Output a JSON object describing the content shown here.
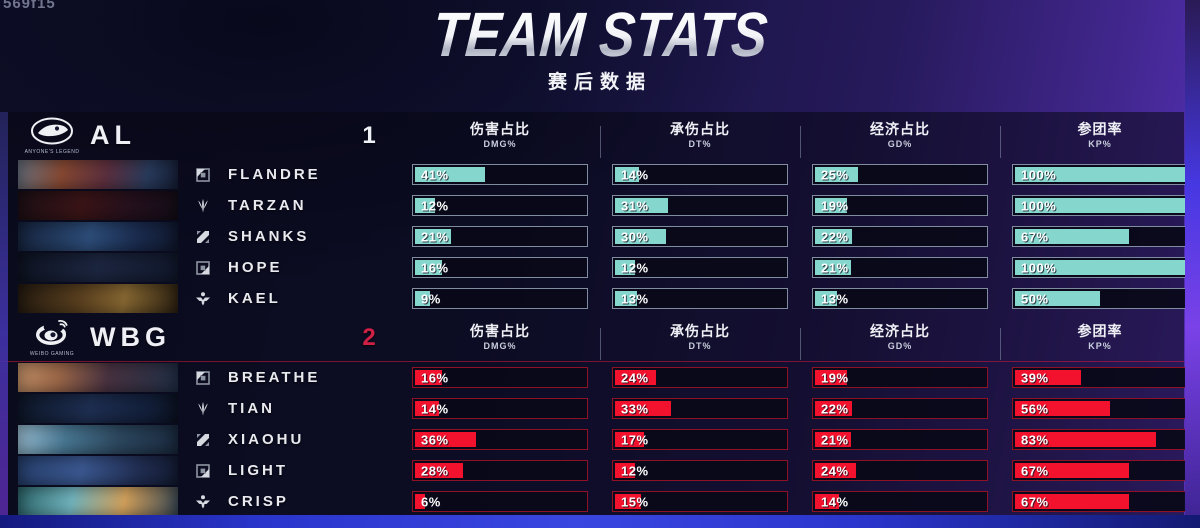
{
  "watermark": "569f15",
  "title": "TEAM STATS",
  "subtitle": "赛后数据",
  "columns": [
    {
      "zh": "伤害占比",
      "en": "DMG%"
    },
    {
      "zh": "承伤占比",
      "en": "DT%"
    },
    {
      "zh": "经济占比",
      "en": "GD%"
    },
    {
      "zh": "参团率",
      "en": "KP%"
    }
  ],
  "teams": [
    {
      "name": "AL",
      "caption": "ANYONE'S LEGEND",
      "score": "1",
      "colors": {
        "bar_fill": "#85d6cd",
        "bar_border": "#808da0",
        "score": "#eef1f6"
      },
      "players": [
        {
          "name": "FLANDRE",
          "role": "top",
          "dmg": {
            "value": 41,
            "label": "41%"
          },
          "dt": {
            "value": 14,
            "label": "14%"
          },
          "gd": {
            "value": 25,
            "label": "25%"
          },
          "kp": {
            "value": 100,
            "label": "100%"
          }
        },
        {
          "name": "TARZAN",
          "role": "jungle",
          "dmg": {
            "value": 12,
            "label": "12%"
          },
          "dt": {
            "value": 31,
            "label": "31%"
          },
          "gd": {
            "value": 19,
            "label": "19%"
          },
          "kp": {
            "value": 100,
            "label": "100%"
          }
        },
        {
          "name": "SHANKS",
          "role": "mid",
          "dmg": {
            "value": 21,
            "label": "21%"
          },
          "dt": {
            "value": 30,
            "label": "30%"
          },
          "gd": {
            "value": 22,
            "label": "22%"
          },
          "kp": {
            "value": 67,
            "label": "67%"
          }
        },
        {
          "name": "HOPE",
          "role": "bot",
          "dmg": {
            "value": 16,
            "label": "16%"
          },
          "dt": {
            "value": 12,
            "label": "12%"
          },
          "gd": {
            "value": 21,
            "label": "21%"
          },
          "kp": {
            "value": 100,
            "label": "100%"
          }
        },
        {
          "name": "KAEL",
          "role": "support",
          "dmg": {
            "value": 9,
            "label": "9%"
          },
          "dt": {
            "value": 13,
            "label": "13%"
          },
          "gd": {
            "value": 13,
            "label": "13%"
          },
          "kp": {
            "value": 50,
            "label": "50%"
          }
        }
      ]
    },
    {
      "name": "WBG",
      "caption": "WEIBO GAMING",
      "score": "2",
      "colors": {
        "bar_fill": "#f2122e",
        "bar_border": "#8e1126",
        "score": "#cf2145"
      },
      "players": [
        {
          "name": "BREATHE",
          "role": "top",
          "dmg": {
            "value": 16,
            "label": "16%"
          },
          "dt": {
            "value": 24,
            "label": "24%"
          },
          "gd": {
            "value": 19,
            "label": "19%"
          },
          "kp": {
            "value": 39,
            "label": "39%"
          }
        },
        {
          "name": "TIAN",
          "role": "jungle",
          "dmg": {
            "value": 14,
            "label": "14%"
          },
          "dt": {
            "value": 33,
            "label": "33%"
          },
          "gd": {
            "value": 22,
            "label": "22%"
          },
          "kp": {
            "value": 56,
            "label": "56%"
          }
        },
        {
          "name": "XIAOHU",
          "role": "mid",
          "dmg": {
            "value": 36,
            "label": "36%"
          },
          "dt": {
            "value": 17,
            "label": "17%"
          },
          "gd": {
            "value": 21,
            "label": "21%"
          },
          "kp": {
            "value": 83,
            "label": "83%"
          }
        },
        {
          "name": "LIGHT",
          "role": "bot",
          "dmg": {
            "value": 28,
            "label": "28%"
          },
          "dt": {
            "value": 12,
            "label": "12%"
          },
          "gd": {
            "value": 24,
            "label": "24%"
          },
          "kp": {
            "value": 67,
            "label": "67%"
          }
        },
        {
          "name": "CRISP",
          "role": "support",
          "dmg": {
            "value": 6,
            "label": "6%"
          },
          "dt": {
            "value": 15,
            "label": "15%"
          },
          "gd": {
            "value": 14,
            "label": "14%"
          },
          "kp": {
            "value": 67,
            "label": "67%"
          }
        }
      ]
    }
  ],
  "chart_data": {
    "type": "bar",
    "title": "TEAM STATS 赛后数据",
    "categories": [
      "DMG%",
      "DT%",
      "GD%",
      "KP%"
    ],
    "value_range": [
      0,
      100
    ],
    "series": [
      {
        "name": "AL FLANDRE",
        "values": [
          41,
          14,
          25,
          100
        ]
      },
      {
        "name": "AL TARZAN",
        "values": [
          12,
          31,
          19,
          100
        ]
      },
      {
        "name": "AL SHANKS",
        "values": [
          21,
          30,
          22,
          67
        ]
      },
      {
        "name": "AL HOPE",
        "values": [
          16,
          12,
          21,
          100
        ]
      },
      {
        "name": "AL KAEL",
        "values": [
          9,
          13,
          13,
          50
        ]
      },
      {
        "name": "WBG BREATHE",
        "values": [
          16,
          24,
          19,
          39
        ]
      },
      {
        "name": "WBG TIAN",
        "values": [
          14,
          33,
          22,
          56
        ]
      },
      {
        "name": "WBG XIAOHU",
        "values": [
          36,
          17,
          21,
          83
        ]
      },
      {
        "name": "WBG LIGHT",
        "values": [
          28,
          12,
          24,
          67
        ]
      },
      {
        "name": "WBG CRISP",
        "values": [
          6,
          15,
          14,
          67
        ]
      }
    ]
  }
}
